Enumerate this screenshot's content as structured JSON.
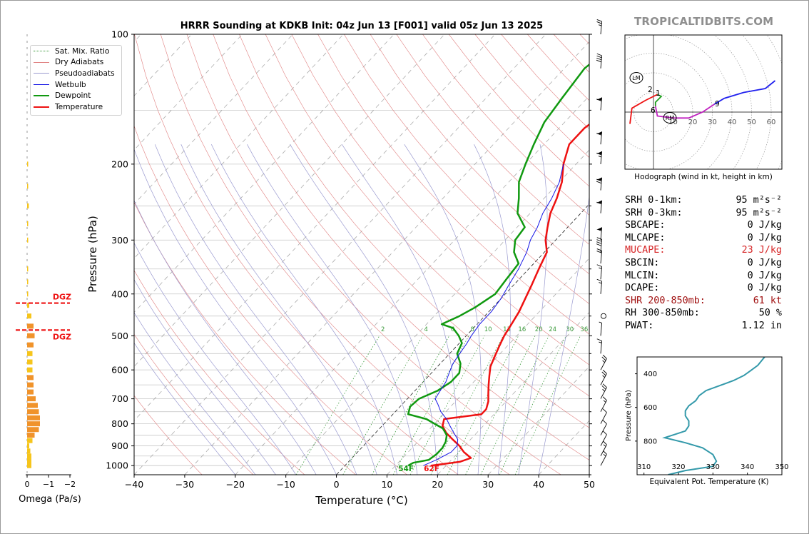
{
  "title": "HRRR Sounding at KDKB Init: 04z Jun 13 [F001] valid 05z Jun 13 2025",
  "site_label": "TROPICALTIDBITS.COM",
  "colors": {
    "temperature": "#ee1111",
    "dewpoint": "#109910",
    "wetbulb": "#1515e6",
    "hodo_low": "#ee1111",
    "hodo_mid": "#20a020",
    "hodo_upper": "#c020c0",
    "hodo_top": "#2020ee",
    "theta_e": "#3399aa",
    "omega_orange": "#f0932b",
    "omega_yellow": "#f6c51c",
    "dgz": "#ee1111"
  },
  "legend": [
    {
      "label": "Sat. Mix. Ratio",
      "color": "#3a9a3a",
      "style": "dotted"
    },
    {
      "label": "Dry Adiabats",
      "color": "#e08080",
      "style": "solid"
    },
    {
      "label": "Pseudoadiabats",
      "color": "#9a9ad0",
      "style": "solid"
    },
    {
      "label": "Wetbulb",
      "color": "#1515e6",
      "style": "solid"
    },
    {
      "label": "Dewpoint",
      "color": "#109910",
      "style": "solid-thick"
    },
    {
      "label": "Temperature",
      "color": "#ee1111",
      "style": "solid-thick"
    }
  ],
  "stats": [
    {
      "label": "SRH 0-1km:",
      "value": "95 m²s⁻²",
      "style": "normal"
    },
    {
      "label": "SRH 0-3km:",
      "value": "95 m²s⁻²",
      "style": "normal"
    },
    {
      "label": "SBCAPE:",
      "value": "0 J/kg",
      "style": "normal"
    },
    {
      "label": "MLCAPE:",
      "value": "0 J/kg",
      "style": "normal"
    },
    {
      "label": "MUCAPE:",
      "value": "23 J/kg",
      "style": "hl"
    },
    {
      "label": "SBCIN:",
      "value": "0 J/kg",
      "style": "normal"
    },
    {
      "label": "MLCIN:",
      "value": "0 J/kg",
      "style": "normal"
    },
    {
      "label": "DCAPE:",
      "value": "0 J/kg",
      "style": "normal"
    },
    {
      "label": "SHR 200-850mb:",
      "value": "61 kt",
      "style": "hl2"
    },
    {
      "label": "RH 300-850mb:",
      "value": "50 %",
      "style": "normal"
    },
    {
      "label": "PWAT:",
      "value": "1.12 in",
      "style": "normal"
    }
  ],
  "chart_data": [
    {
      "type": "line",
      "subtype": "skew-t log-p",
      "title": "HRRR Sounding at KDKB Init: 04z Jun 13 [F001] valid 05z Jun 13 2025",
      "xlabel": "Temperature (°C)",
      "ylabel": "Pressure (hPa)",
      "xlim": [
        -40,
        50
      ],
      "ylim": [
        1050,
        100
      ],
      "y_scale": "log",
      "x_ticks": [
        -40,
        -30,
        -20,
        -10,
        0,
        10,
        20,
        30,
        40,
        50
      ],
      "y_ticks": [
        100,
        200,
        300,
        400,
        500,
        600,
        700,
        800,
        900,
        1000
      ],
      "mixing_ratio_labels": [
        "2",
        "4",
        "6",
        "8",
        "10",
        "13",
        "16",
        "20",
        "24",
        "30",
        "36"
      ],
      "surface_labels": {
        "dewpoint": "54F",
        "temperature": "62F"
      },
      "series": [
        {
          "name": "Temperature",
          "points": [
            [
              1000,
              17
            ],
            [
              980,
              22
            ],
            [
              960,
              23.5
            ],
            [
              930,
              21
            ],
            [
              900,
              19
            ],
            [
              870,
              16.5
            ],
            [
              840,
              14
            ],
            [
              810,
              12
            ],
            [
              780,
              11
            ],
            [
              760,
              17.5
            ],
            [
              740,
              17.5
            ],
            [
              710,
              16.5
            ],
            [
              680,
              15
            ],
            [
              650,
              13.5
            ],
            [
              620,
              12
            ],
            [
              590,
              10.5
            ],
            [
              560,
              9.5
            ],
            [
              530,
              8.5
            ],
            [
              500,
              7.5
            ],
            [
              470,
              6.8
            ],
            [
              440,
              6
            ],
            [
              410,
              4.8
            ],
            [
              380,
              3.5
            ],
            [
              350,
              2
            ],
            [
              320,
              0.5
            ],
            [
              300,
              -2
            ],
            [
              280,
              -4
            ],
            [
              260,
              -6
            ],
            [
              240,
              -7.5
            ],
            [
              220,
              -9.5
            ],
            [
              200,
              -12.5
            ],
            [
              180,
              -15
            ],
            [
              165,
              -15
            ],
            [
              150,
              -13.5
            ],
            [
              135,
              -10
            ],
            [
              120,
              -6
            ],
            [
              110,
              -3.5
            ],
            [
              100,
              -1
            ]
          ]
        },
        {
          "name": "Dewpoint",
          "points": [
            [
              1000,
              12.5
            ],
            [
              985,
              13
            ],
            [
              970,
              15.5
            ],
            [
              940,
              16
            ],
            [
              910,
              16
            ],
            [
              880,
              15.5
            ],
            [
              850,
              14.5
            ],
            [
              820,
              12.5
            ],
            [
              800,
              10
            ],
            [
              780,
              7.5
            ],
            [
              760,
              3
            ],
            [
              730,
              2
            ],
            [
              700,
              2.3
            ],
            [
              670,
              4.5
            ],
            [
              640,
              5.5
            ],
            [
              610,
              5.5
            ],
            [
              580,
              4
            ],
            [
              550,
              1.5
            ],
            [
              520,
              0.5
            ],
            [
              500,
              -1.5
            ],
            [
              480,
              -4
            ],
            [
              470,
              -7
            ],
            [
              450,
              -5
            ],
            [
              430,
              -3.5
            ],
            [
              400,
              -2
            ],
            [
              370,
              -2.5
            ],
            [
              340,
              -3
            ],
            [
              320,
              -6
            ],
            [
              300,
              -8
            ],
            [
              280,
              -8.5
            ],
            [
              260,
              -12.5
            ],
            [
              240,
              -15
            ],
            [
              220,
              -18
            ],
            [
              200,
              -20
            ],
            [
              180,
              -22
            ],
            [
              160,
              -24
            ],
            [
              140,
              -25
            ],
            [
              120,
              -26
            ],
            [
              100,
              -24
            ]
          ]
        },
        {
          "name": "Wetbulb",
          "points": [
            [
              1000,
              15.5
            ],
            [
              970,
              17
            ],
            [
              930,
              18.5
            ],
            [
              900,
              18.5
            ],
            [
              870,
              17.5
            ],
            [
              840,
              15.5
            ],
            [
              810,
              13.5
            ],
            [
              780,
              11.5
            ],
            [
              750,
              9
            ],
            [
              720,
              7
            ],
            [
              700,
              5.5
            ],
            [
              670,
              5
            ],
            [
              640,
              4.5
            ],
            [
              610,
              3.5
            ],
            [
              580,
              2.5
            ],
            [
              550,
              2
            ],
            [
              520,
              1.5
            ],
            [
              500,
              1
            ],
            [
              470,
              0.5
            ],
            [
              440,
              0.5
            ],
            [
              410,
              0
            ],
            [
              380,
              -1
            ],
            [
              350,
              -2
            ],
            [
              320,
              -3.5
            ],
            [
              300,
              -5
            ],
            [
              280,
              -6
            ],
            [
              260,
              -7.5
            ],
            [
              240,
              -8.5
            ],
            [
              220,
              -10
            ],
            [
              200,
              -12.5
            ]
          ]
        }
      ],
      "dgz_levels_hpa": [
        420,
        485
      ],
      "dgz_label": "DGZ",
      "wind_barbs_kt": [
        [
          1000,
          15
        ],
        [
          950,
          15
        ],
        [
          900,
          10
        ],
        [
          850,
          10
        ],
        [
          800,
          10
        ],
        [
          750,
          15
        ],
        [
          700,
          25
        ],
        [
          650,
          25
        ],
        [
          600,
          25
        ],
        [
          550,
          15
        ],
        [
          500,
          5
        ],
        [
          450,
          0
        ],
        [
          400,
          15
        ],
        [
          370,
          15
        ],
        [
          340,
          20
        ],
        [
          320,
          40
        ],
        [
          300,
          55
        ],
        [
          260,
          60
        ],
        [
          230,
          70
        ],
        [
          200,
          65
        ],
        [
          180,
          60
        ],
        [
          150,
          60
        ],
        [
          120,
          40
        ],
        [
          100,
          25
        ]
      ]
    },
    {
      "type": "bar",
      "subtype": "horizontal",
      "xlabel": "Omega (Pa/s)",
      "xlim": [
        0,
        -2
      ],
      "x_ticks": [
        0,
        -1,
        -2
      ],
      "x_tick_labels": [
        "0",
        "−1",
        "−2"
      ],
      "levels_hpa": [
        1000,
        975,
        950,
        925,
        900,
        875,
        850,
        825,
        800,
        775,
        750,
        725,
        700,
        675,
        650,
        625,
        600,
        575,
        550,
        525,
        500,
        475,
        450,
        425,
        400,
        375,
        350,
        325,
        300,
        275,
        250,
        225,
        200,
        175,
        150,
        125,
        100
      ],
      "values": [
        -0.2,
        -0.2,
        -0.2,
        -0.15,
        -0.1,
        -0.25,
        -0.35,
        -0.55,
        -0.6,
        -0.6,
        -0.55,
        -0.5,
        -0.4,
        -0.3,
        -0.3,
        -0.3,
        -0.25,
        -0.25,
        -0.25,
        -0.3,
        -0.35,
        -0.3,
        -0.2,
        -0.1,
        -0.05,
        -0.03,
        -0.02,
        0,
        -0.02,
        -0.05,
        -0.08,
        -0.05,
        -0.03,
        0,
        0,
        0,
        0
      ]
    },
    {
      "type": "line",
      "subtype": "hodograph",
      "xlabel": "Hodograph (wind in kt, height in km)",
      "ring_labels": [
        "10",
        "20",
        "30",
        "40",
        "50",
        "60"
      ],
      "height_labels": [
        "1",
        "2",
        "6",
        "9"
      ],
      "storm_motion_labels": [
        "LM",
        "RM"
      ],
      "series": [
        {
          "name": "0-1 km",
          "points": [
            [
              -12,
              -6
            ],
            [
              -11,
              2
            ],
            [
              -4,
              6
            ],
            [
              0,
              8
            ],
            [
              2,
              9
            ]
          ]
        },
        {
          "name": "1-3 km",
          "points": [
            [
              2,
              9
            ],
            [
              4,
              8
            ],
            [
              1,
              5
            ],
            [
              1,
              3
            ]
          ]
        },
        {
          "name": "3-9 km",
          "points": [
            [
              1,
              3
            ],
            [
              2,
              -2
            ],
            [
              10,
              -3
            ],
            [
              18,
              -3
            ],
            [
              25,
              0
            ],
            [
              31,
              4
            ]
          ]
        },
        {
          "name": "9+ km",
          "points": [
            [
              31,
              4
            ],
            [
              36,
              7
            ],
            [
              46,
              10
            ],
            [
              57,
              12
            ],
            [
              62,
              16
            ]
          ]
        }
      ]
    },
    {
      "type": "line",
      "subtype": "profile",
      "xlabel": "Equivalent Pot. Temperature (K)",
      "ylabel": "Pressure (hPa)",
      "xlim": [
        308,
        350
      ],
      "x_ticks": [
        310,
        320,
        330,
        340,
        350
      ],
      "y_ticks": [
        400,
        600,
        800
      ],
      "ylim": [
        1000,
        300
      ],
      "series": [
        {
          "name": "theta_e",
          "points": [
            [
              1000,
              317
            ],
            [
              975,
              322
            ],
            [
              950,
              330
            ],
            [
              920,
              331
            ],
            [
              880,
              330
            ],
            [
              840,
              327
            ],
            [
              810,
              322
            ],
            [
              780,
              316
            ],
            [
              760,
              319
            ],
            [
              740,
              322
            ],
            [
              710,
              323
            ],
            [
              680,
              323
            ],
            [
              650,
              322
            ],
            [
              620,
              322
            ],
            [
              590,
              323
            ],
            [
              560,
              325
            ],
            [
              530,
              326
            ],
            [
              500,
              328
            ],
            [
              470,
              332
            ],
            [
              440,
              336
            ],
            [
              410,
              339
            ],
            [
              380,
              341
            ],
            [
              350,
              343
            ],
            [
              300,
              345
            ]
          ]
        }
      ]
    }
  ]
}
